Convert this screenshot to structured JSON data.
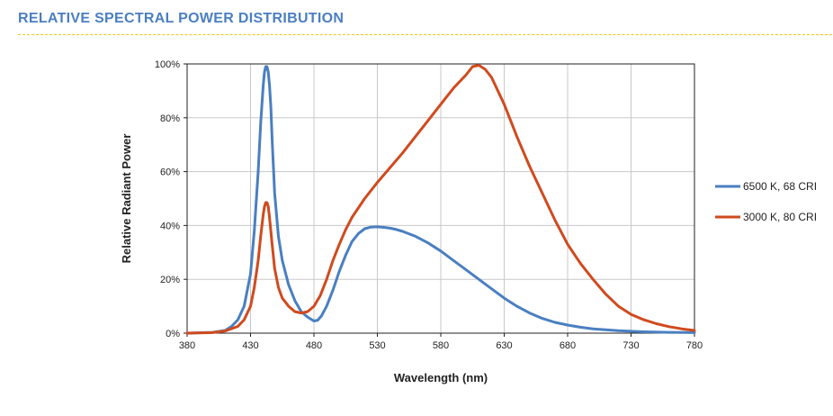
{
  "page": {
    "title": "RELATIVE SPECTRAL POWER DISTRIBUTION",
    "title_color": "#4a7fc1",
    "rule_color": "#f2c417"
  },
  "chart_data": {
    "type": "line",
    "title": "",
    "xlabel": "Wavelength (nm)",
    "ylabel": "Relative Radiant Power",
    "xlim": [
      380,
      780
    ],
    "ylim": [
      0,
      100
    ],
    "x_ticks": [
      380,
      430,
      480,
      530,
      580,
      630,
      680,
      730,
      780
    ],
    "y_ticks": [
      "0%",
      "20%",
      "40%",
      "60%",
      "80%",
      "100%"
    ],
    "y_tick_values": [
      0,
      20,
      40,
      60,
      80,
      100
    ],
    "grid": true,
    "legend_position": "right",
    "series": [
      {
        "name": "6500 K, 68 CRI",
        "color": "#4a7fc1",
        "x": [
          380,
          400,
          410,
          415,
          420,
          425,
          430,
          433,
          436,
          438,
          440,
          441,
          442,
          443,
          444,
          445,
          446,
          447,
          449,
          452,
          455,
          460,
          465,
          470,
          475,
          480,
          483,
          486,
          490,
          495,
          500,
          505,
          510,
          515,
          520,
          525,
          530,
          535,
          540,
          545,
          550,
          560,
          570,
          580,
          590,
          600,
          610,
          620,
          630,
          640,
          650,
          660,
          670,
          680,
          690,
          700,
          720,
          740,
          760,
          780
        ],
        "y": [
          0,
          0.3,
          1,
          2.5,
          5,
          10,
          22,
          38,
          60,
          78,
          92,
          97,
          99,
          99,
          97,
          92,
          84,
          72,
          52,
          36,
          27,
          18,
          12,
          8,
          6,
          4.5,
          4.8,
          6.5,
          10,
          16,
          23,
          29,
          34,
          37,
          38.8,
          39.4,
          39.5,
          39.3,
          39,
          38.5,
          37.8,
          36,
          33.5,
          30.5,
          27,
          23.5,
          20,
          16.5,
          13,
          10,
          7.5,
          5.5,
          4,
          3,
          2.2,
          1.6,
          0.9,
          0.5,
          0.3,
          0.2
        ]
      },
      {
        "name": "3000 K, 80 CRI",
        "color": "#d04a1e",
        "x": [
          380,
          400,
          410,
          420,
          425,
          430,
          433,
          436,
          438,
          440,
          441,
          442,
          443,
          444,
          445,
          447,
          449,
          452,
          455,
          460,
          465,
          470,
          475,
          480,
          485,
          490,
          495,
          500,
          505,
          510,
          520,
          530,
          540,
          550,
          560,
          570,
          580,
          590,
          600,
          605,
          610,
          615,
          620,
          630,
          640,
          650,
          660,
          670,
          680,
          690,
          700,
          710,
          720,
          730,
          740,
          750,
          760,
          770,
          780
        ],
        "y": [
          0,
          0.2,
          0.8,
          2.5,
          5,
          10,
          17,
          27,
          36,
          44,
          47,
          48.5,
          48.5,
          47,
          43,
          33,
          24,
          17,
          13,
          10,
          8,
          7.5,
          8,
          10,
          14,
          20,
          27,
          33,
          38.5,
          43,
          50,
          56,
          61.5,
          67,
          73,
          79,
          85,
          91,
          96,
          99,
          99.5,
          98,
          95,
          85,
          73,
          62,
          52,
          42,
          33,
          26,
          20,
          14.5,
          10,
          7,
          5,
          3.5,
          2.4,
          1.6,
          1
        ]
      }
    ]
  }
}
